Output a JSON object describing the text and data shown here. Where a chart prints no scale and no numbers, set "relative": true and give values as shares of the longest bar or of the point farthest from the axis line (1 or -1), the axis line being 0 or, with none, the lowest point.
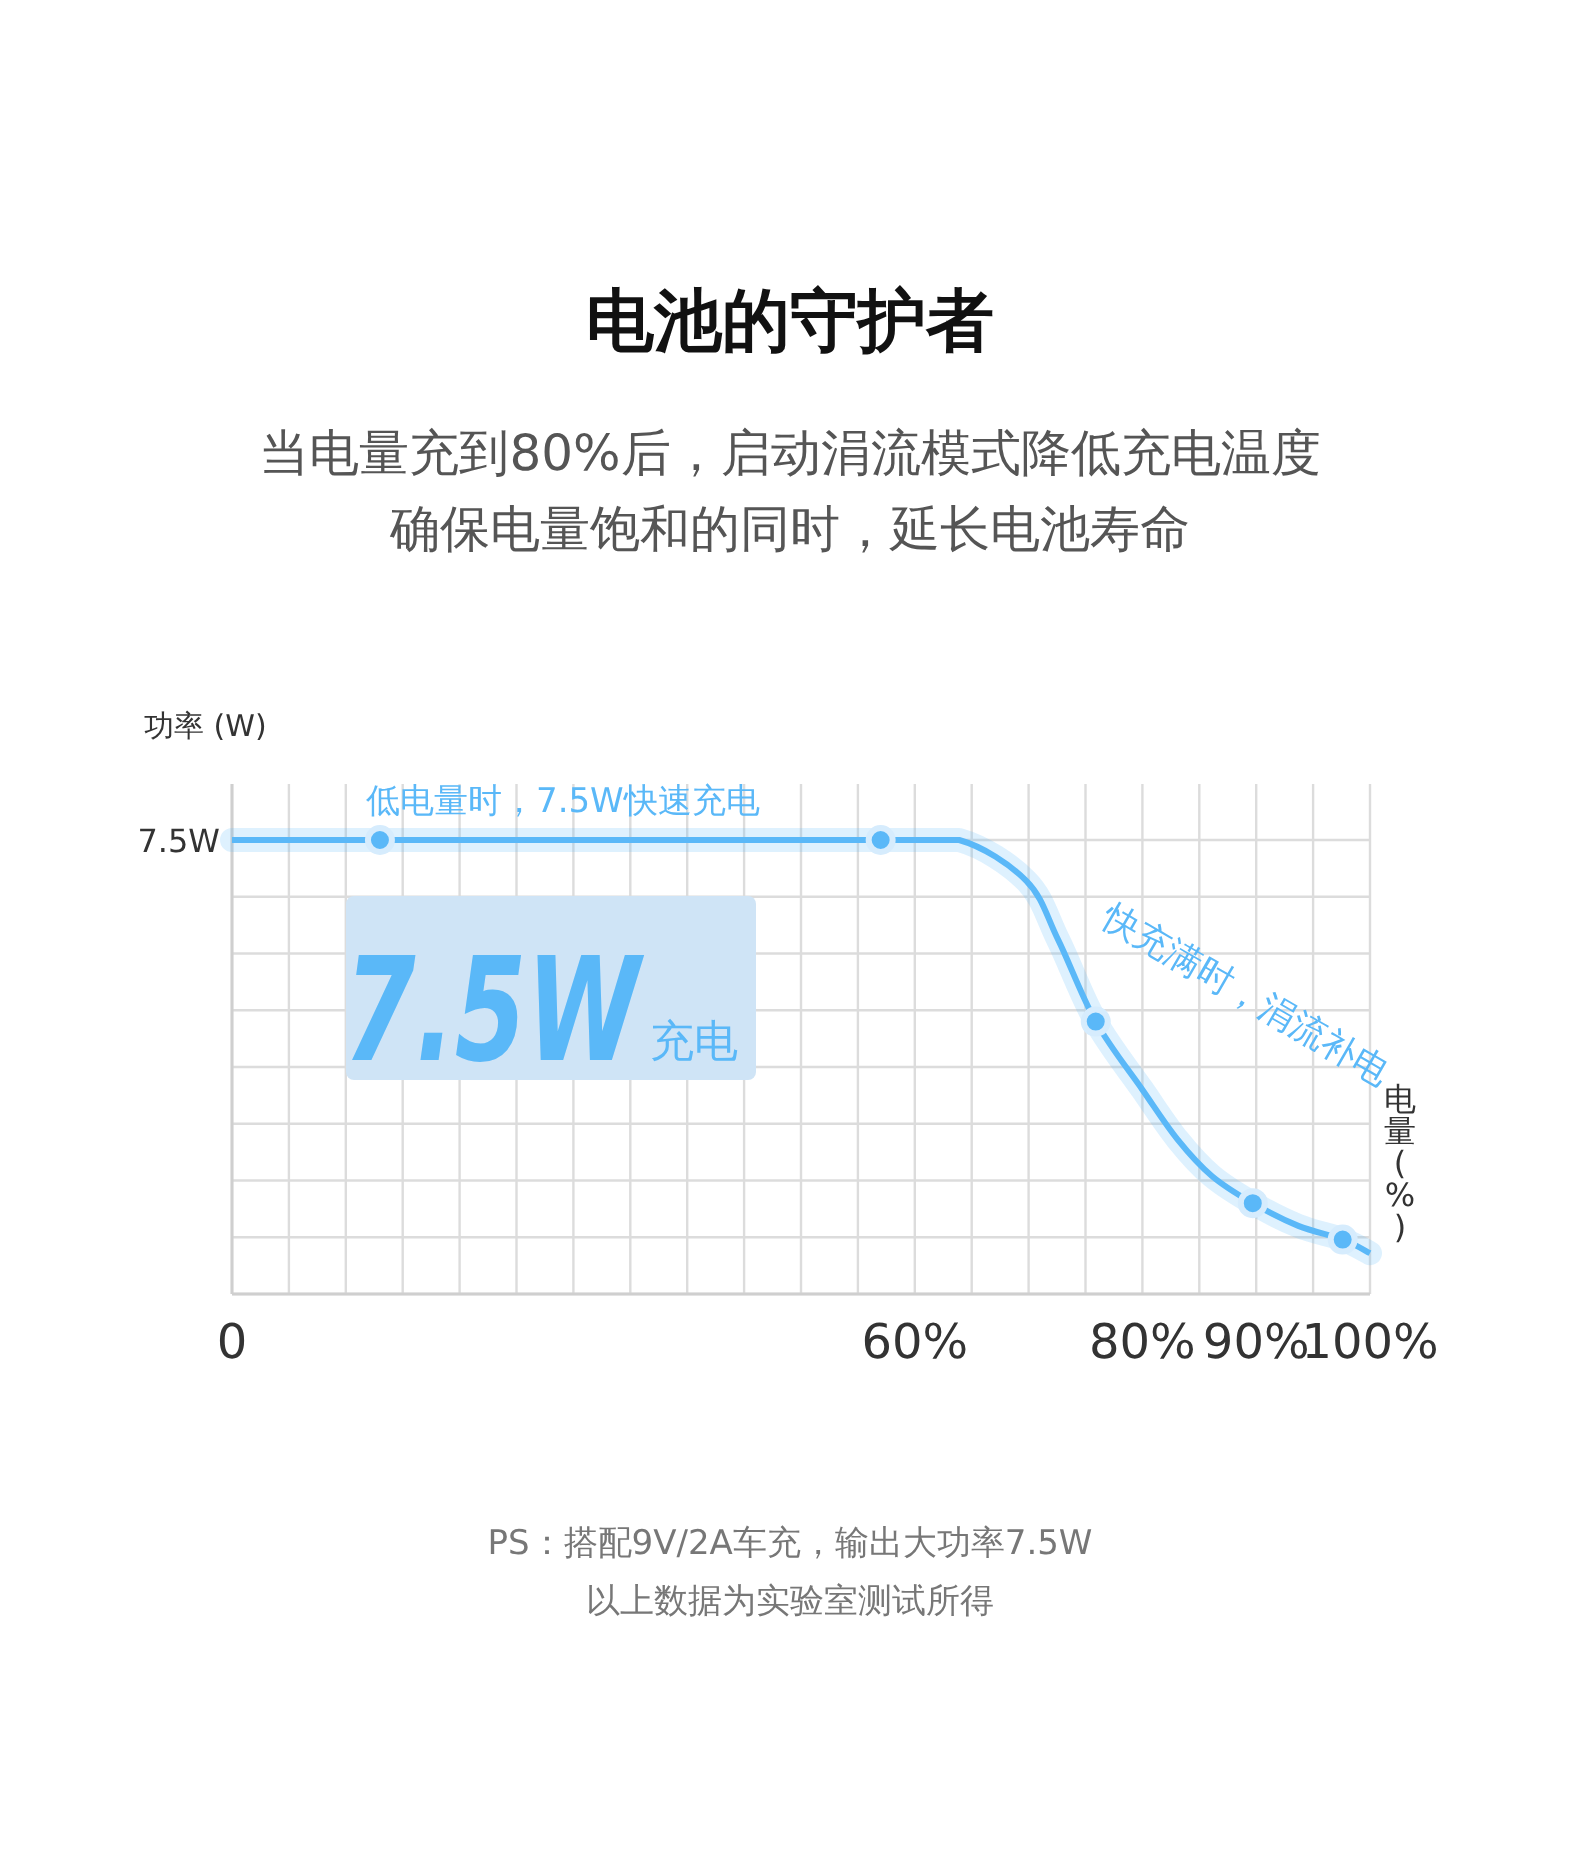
{
  "chart_data": {
    "type": "line",
    "title": "电池的守护者",
    "subtitle": "当电量充到80%后，启动涓流模式降低充电温度",
    "ylabel": "功率 (W)",
    "xlabel": "电量 (%)",
    "relative": true,
    "xlim": [
      0,
      100
    ],
    "xticks": [
      0,
      {
        "value": 60,
        "label": "60%"
      },
      {
        "value": 80,
        "label": "80%"
      },
      {
        "value": 90,
        "label": "90%"
      },
      {
        "value": 100,
        "label": "100%"
      }
    ],
    "grid": true,
    "line_style": "solid",
    "series": [
      {
        "color": "#5ab8f8",
        "x": [
          0,
          13,
          57,
          63.9,
          69.8,
          72.6,
          75.9,
          80,
          83.1,
          86.1,
          89.7,
          93.7,
          97.6,
          100
        ],
        "values": [
          1,
          1,
          1,
          1,
          0.91,
          0.78,
          0.6,
          0.45,
          0.34,
          0.26,
          0.2,
          0.15,
          0.12,
          0.09
        ]
      },
      {
        "type": "scatter",
        "color": "#5ab8f8",
        "marker": "circle",
        "x": [
          13,
          57,
          75.9,
          89.7,
          97.6
        ],
        "values": [
          1,
          1,
          0.6,
          0.2,
          0.12
        ]
      }
    ],
    "annotations": [
      {
        "text": "7.5W",
        "x": 0,
        "y": 1
      },
      "低电量时，7.5W快速充电",
      "7.5W",
      "充电",
      "快充满时，涓流补电",
      "PS：搭配9V/2A车充，输出大功率7.5W",
      "以上数据为实验室测试所得",
      "确保电量饱和的同时，延长电池寿命"
    ]
  }
}
